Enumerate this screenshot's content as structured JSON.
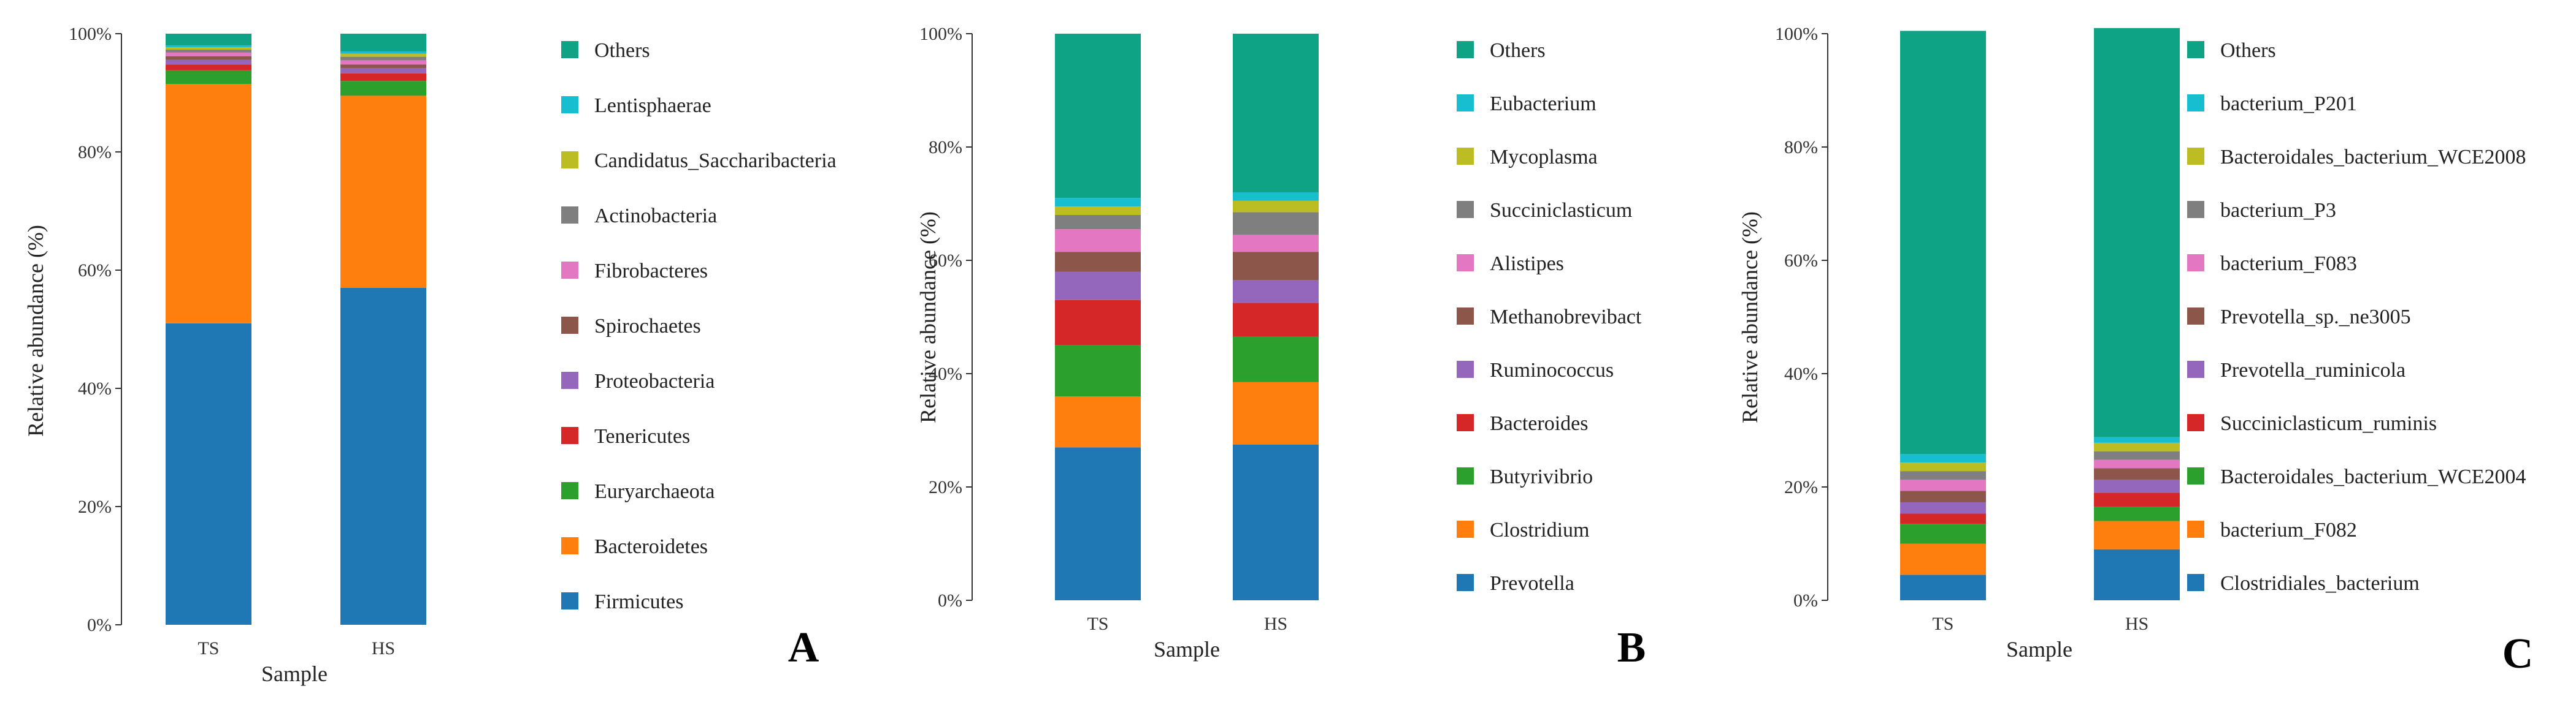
{
  "chart_data": [
    {
      "type": "bar",
      "stacked": true,
      "panel_label": "A",
      "xlabel": "Sample",
      "ylabel": "Relative abundance (%)",
      "ylim": [
        0,
        100
      ],
      "y_ticks": [
        "0%",
        "20%",
        "40%",
        "60%",
        "80%",
        "100%"
      ],
      "categories": [
        "TS",
        "HS"
      ],
      "series": [
        {
          "name": "Firmicutes",
          "color": "#1f77b4",
          "values": [
            51.0,
            57.0
          ]
        },
        {
          "name": "Bacteroidetes",
          "color": "#ff7f0e",
          "values": [
            40.5,
            32.5
          ]
        },
        {
          "name": "Euryarchaeota",
          "color": "#2ca02c",
          "values": [
            2.3,
            2.5
          ]
        },
        {
          "name": "Tenericutes",
          "color": "#d62728",
          "values": [
            1.0,
            1.3
          ]
        },
        {
          "name": "Proteobacteria",
          "color": "#9467bd",
          "values": [
            0.8,
            0.9
          ]
        },
        {
          "name": "Spirochaetes",
          "color": "#8c564b",
          "values": [
            0.6,
            0.6
          ]
        },
        {
          "name": "Fibrobacteres",
          "color": "#e377c2",
          "values": [
            0.6,
            0.7
          ]
        },
        {
          "name": "Actinobacteria",
          "color": "#7f7f7f",
          "values": [
            0.5,
            0.6
          ]
        },
        {
          "name": "Candidatus_Saccharibacteria",
          "color": "#bcbd22",
          "values": [
            0.4,
            0.5
          ]
        },
        {
          "name": "Lentisphaerae",
          "color": "#17becf",
          "values": [
            0.3,
            0.4
          ]
        },
        {
          "name": "Others",
          "color": "#0fa386",
          "values": [
            2.0,
            3.0
          ]
        }
      ]
    },
    {
      "type": "bar",
      "stacked": true,
      "panel_label": "B",
      "xlabel": "Sample",
      "ylabel": "Relative abundance (%)",
      "ylim": [
        0,
        100
      ],
      "y_ticks": [
        "0%",
        "20%",
        "40%",
        "60%",
        "80%",
        "100%"
      ],
      "categories": [
        "TS",
        "HS"
      ],
      "series": [
        {
          "name": "Prevotella",
          "color": "#1f77b4",
          "values": [
            27.0,
            27.5
          ]
        },
        {
          "name": "Clostridium",
          "color": "#ff7f0e",
          "values": [
            9.0,
            11.0
          ]
        },
        {
          "name": "Butyrivibrio",
          "color": "#2ca02c",
          "values": [
            9.0,
            8.0
          ]
        },
        {
          "name": "Bacteroides",
          "color": "#d62728",
          "values": [
            8.0,
            6.0
          ]
        },
        {
          "name": "Ruminococcus",
          "color": "#9467bd",
          "values": [
            5.0,
            4.0
          ]
        },
        {
          "name": "Methanobrevibact",
          "color": "#8c564b",
          "values": [
            3.5,
            5.0
          ]
        },
        {
          "name": "Alistipes",
          "color": "#e377c2",
          "values": [
            4.0,
            3.0
          ]
        },
        {
          "name": "Succiniclasticum",
          "color": "#7f7f7f",
          "values": [
            2.5,
            4.0
          ]
        },
        {
          "name": "Mycoplasma",
          "color": "#bcbd22",
          "values": [
            1.5,
            2.0
          ]
        },
        {
          "name": "Eubacterium",
          "color": "#17becf",
          "values": [
            1.5,
            1.5
          ]
        },
        {
          "name": "Others",
          "color": "#0fa386",
          "values": [
            29.0,
            28.0
          ]
        }
      ]
    },
    {
      "type": "bar",
      "stacked": true,
      "panel_label": "C",
      "xlabel": "Sample",
      "ylabel": "Relative abundance (%)",
      "ylim": [
        0,
        100
      ],
      "y_ticks": [
        "0%",
        "20%",
        "40%",
        "60%",
        "80%",
        "100%"
      ],
      "categories": [
        "TS",
        "HS"
      ],
      "series": [
        {
          "name": "Clostridiales_bacterium",
          "color": "#1f77b4",
          "values": [
            4.5,
            9.0
          ]
        },
        {
          "name": "bacterium_F082",
          "color": "#ff7f0e",
          "values": [
            5.5,
            5.0
          ]
        },
        {
          "name": "Bacteroidales_bacterium_WCE2004",
          "color": "#2ca02c",
          "values": [
            3.5,
            2.5
          ]
        },
        {
          "name": "Succiniclasticum_ruminis",
          "color": "#d62728",
          "values": [
            1.8,
            2.5
          ]
        },
        {
          "name": "Prevotella_ruminicola",
          "color": "#9467bd",
          "values": [
            2.0,
            2.3
          ]
        },
        {
          "name": "Prevotella_sp._ne3005",
          "color": "#8c564b",
          "values": [
            2.0,
            2.0
          ]
        },
        {
          "name": "bacterium_F083",
          "color": "#e377c2",
          "values": [
            2.0,
            1.5
          ]
        },
        {
          "name": "bacterium_P3",
          "color": "#7f7f7f",
          "values": [
            1.5,
            1.5
          ]
        },
        {
          "name": "Bacteroidales_bacterium_WCE2008",
          "color": "#bcbd22",
          "values": [
            1.5,
            1.5
          ]
        },
        {
          "name": "bacterium_P201",
          "color": "#17becf",
          "values": [
            1.5,
            1.0
          ]
        },
        {
          "name": "Others",
          "color": "#0fa386",
          "values": [
            74.7,
            72.2
          ]
        }
      ]
    }
  ]
}
